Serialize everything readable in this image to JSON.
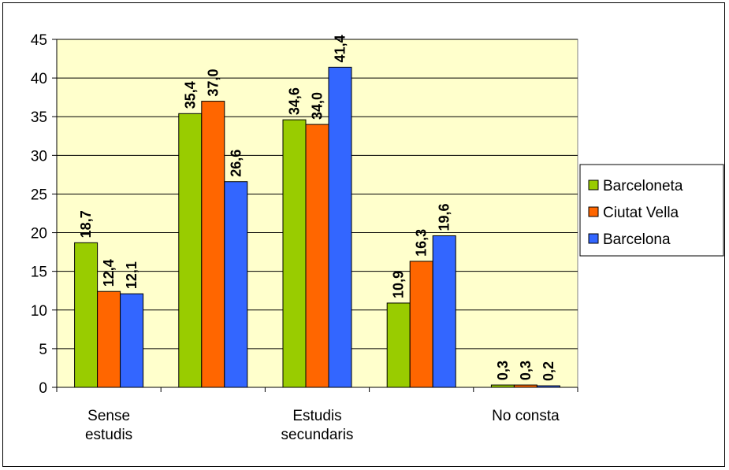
{
  "chart_data": {
    "type": "bar",
    "categories": [
      [
        "Sense",
        "estudis"
      ],
      [],
      [
        "Estudis",
        "secundaris"
      ],
      [],
      [
        "No consta"
      ]
    ],
    "series": [
      {
        "name": "Barceloneta",
        "color": "#99cc00",
        "values": [
          18.7,
          35.4,
          34.6,
          10.9,
          0.3
        ],
        "labels": [
          "18,7",
          "35,4",
          "34,6",
          "10,9",
          "0,3"
        ]
      },
      {
        "name": "Ciutat Vella",
        "color": "#ff6600",
        "values": [
          12.4,
          37.0,
          34.0,
          16.3,
          0.3
        ],
        "labels": [
          "12,4",
          "37,0",
          "34,0",
          "16,3",
          "0,3"
        ]
      },
      {
        "name": "Barcelona",
        "color": "#3366ff",
        "values": [
          12.1,
          26.6,
          41.4,
          19.6,
          0.2
        ],
        "labels": [
          "12,1",
          "26,6",
          "41,4",
          "19,6",
          "0,2"
        ]
      }
    ],
    "ylim": [
      0,
      45
    ],
    "yticks": [
      0,
      5,
      10,
      15,
      20,
      25,
      30,
      35,
      40,
      45
    ],
    "plot_background": "#ffffcc",
    "grid": true,
    "legend_position": "right"
  }
}
